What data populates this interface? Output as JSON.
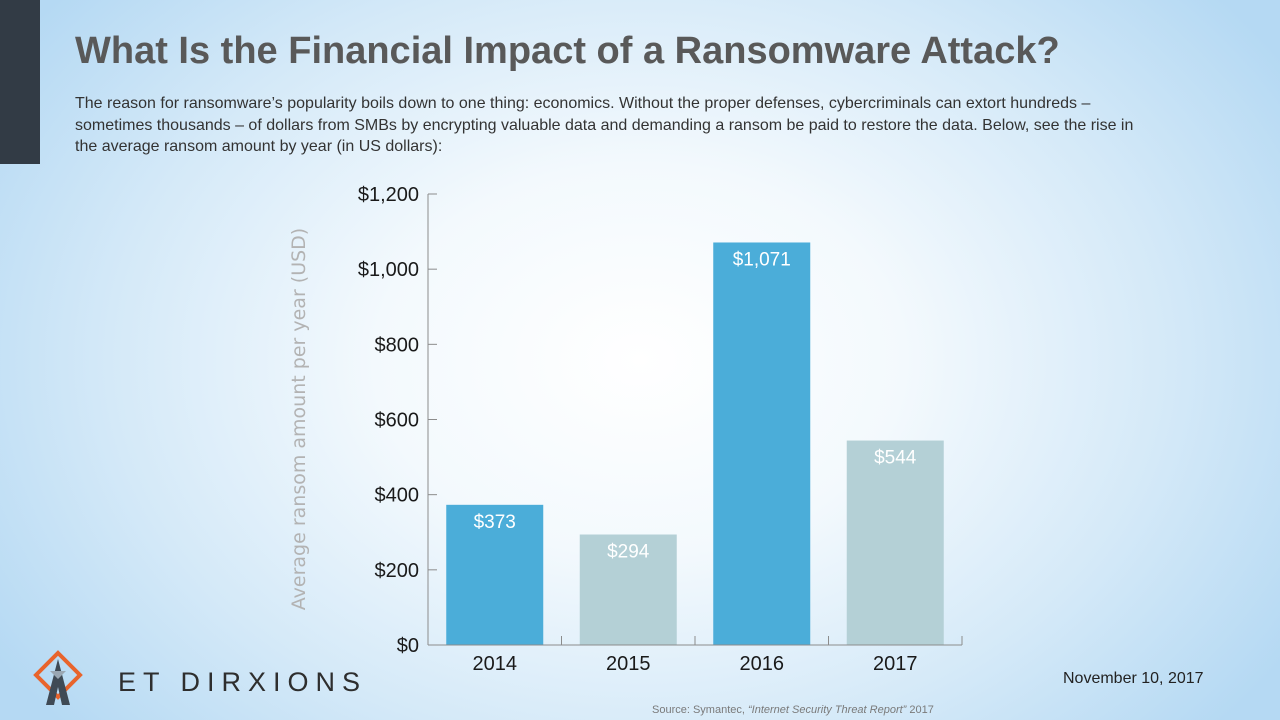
{
  "slide": {
    "title": "What Is the Financial Impact of a Ransomware Attack?",
    "subtitle": "The reason for ransomware’s popularity boils down to one thing: economics. Without the proper defenses, cybercriminals can extort hundreds – sometimes thousands – of dollars from SMBs by encrypting valuable data and demanding a ransom be paid to restore the data. Below, see the rise in the average ransom amount by year (in US dollars):",
    "date": "November 10, 2017",
    "source_prefix": "Source: Symantec, ",
    "source_title": "“Internet Security Threat Report”",
    "source_year": " 2017",
    "logo_text": "ET DIRXIONS",
    "colors": {
      "accent_bar": "#323b45",
      "bar_dark": "#4badd9",
      "bar_light": "#b4d0d6"
    }
  },
  "chart_data": {
    "type": "bar",
    "categories": [
      "2014",
      "2015",
      "2016",
      "2017"
    ],
    "values": [
      373,
      294,
      1071,
      544
    ],
    "value_labels": [
      "$373",
      "$294",
      "$1,071",
      "$544"
    ],
    "bar_colors": [
      "#4badd9",
      "#b4d0d6",
      "#4badd9",
      "#b4d0d6"
    ],
    "ylabel": "Average ransom amount per year (USD)",
    "xlabel": "",
    "ylim": [
      0,
      1200
    ],
    "yticks": [
      0,
      200,
      400,
      600,
      800,
      1000,
      1200
    ],
    "ytick_labels": [
      "$0",
      "$200",
      "$400",
      "$600",
      "$800",
      "$1,000",
      "$1,200"
    ],
    "grid": false
  }
}
